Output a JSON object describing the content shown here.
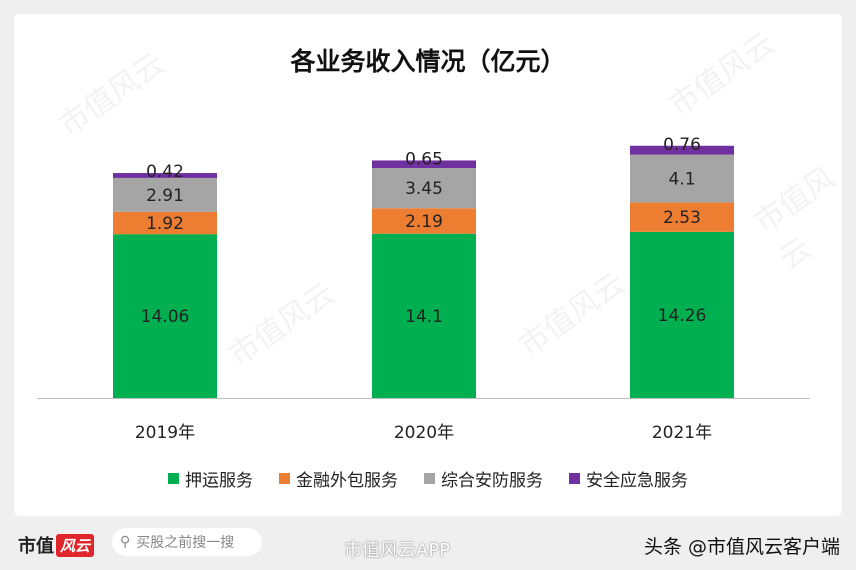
{
  "chart_data": {
    "type": "bar",
    "stacked": true,
    "title": "各业务收入情况（亿元）",
    "categories": [
      "2019年",
      "2020年",
      "2021年"
    ],
    "series": [
      {
        "name": "押运服务",
        "color": "#00b050",
        "values": [
          14.06,
          14.1,
          14.26
        ]
      },
      {
        "name": "金融外包服务",
        "color": "#ed7d31",
        "values": [
          1.92,
          2.19,
          2.53
        ]
      },
      {
        "name": "综合安防服务",
        "color": "#a5a5a5",
        "values": [
          2.91,
          3.45,
          4.1
        ]
      },
      {
        "name": "安全应急服务",
        "color": "#7030a0",
        "values": [
          0.42,
          0.65,
          0.76
        ]
      }
    ],
    "data_labels": true,
    "grid": false,
    "legend": "bottom"
  },
  "watermark": "市值风云",
  "footer": {
    "brand": "市值",
    "brand_logo": "风云",
    "search_placeholder": "买股之前搜一搜",
    "weibo": "市值风云APP",
    "toutiao": "头条 @市值风云客户端"
  }
}
